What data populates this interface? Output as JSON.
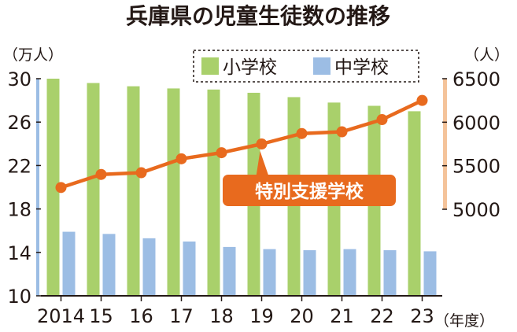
{
  "chart_data": {
    "type": "bar+line",
    "title": "兵庫県の児童生徒数の推移",
    "left_unit": "（万人）",
    "right_unit": "（人）",
    "x_unit": "（年度）",
    "categories": [
      "2014",
      "15",
      "16",
      "17",
      "18",
      "19",
      "20",
      "21",
      "22",
      "23"
    ],
    "left_axis": {
      "min": 10,
      "max": 30,
      "ticks": [
        30,
        26,
        22,
        18,
        14,
        10
      ],
      "tick_labels": [
        "30",
        "26",
        "22",
        "18",
        "14",
        "10"
      ]
    },
    "right_axis": {
      "min": 5000,
      "max": 6500,
      "ticks": [
        6500,
        6000,
        5500,
        5000
      ],
      "tick_labels": [
        "6500",
        "6000",
        "5500",
        "5000"
      ]
    },
    "series": [
      {
        "name": "小学校",
        "type": "bar",
        "axis": "left",
        "color": "#a9d06b",
        "values": [
          30.0,
          29.6,
          29.3,
          29.1,
          29.0,
          28.7,
          28.3,
          27.8,
          27.5,
          27.0
        ]
      },
      {
        "name": "中学校",
        "type": "bar",
        "axis": "left",
        "color": "#9cbde4",
        "values": [
          15.9,
          15.7,
          15.3,
          15.0,
          14.5,
          14.3,
          14.2,
          14.3,
          14.2,
          14.1
        ]
      },
      {
        "name": "特別支援学校",
        "type": "line",
        "axis": "right",
        "color": "#e86a1e",
        "values": [
          5250,
          5400,
          5420,
          5580,
          5650,
          5750,
          5870,
          5890,
          6030,
          6250
        ]
      }
    ],
    "legend": {
      "placement": "top",
      "items": [
        "小学校",
        "中学校"
      ]
    },
    "callout": {
      "text": "特別支援学校"
    },
    "grid": false
  }
}
